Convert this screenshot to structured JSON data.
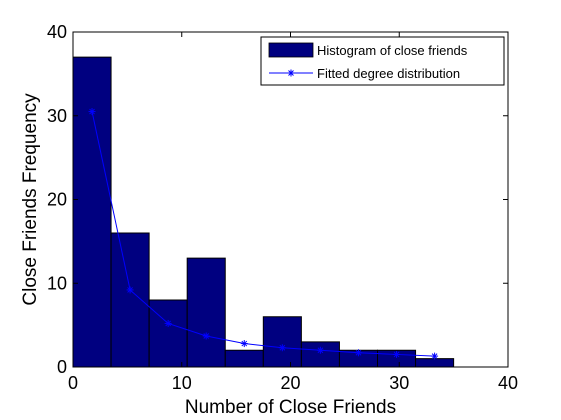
{
  "chart_data": {
    "type": "bar",
    "xlabel": "Number of Close Friends",
    "ylabel": "Close Friends Frequency",
    "xlim": [
      0,
      40
    ],
    "ylim": [
      0,
      40
    ],
    "xticks": [
      0,
      10,
      20,
      30,
      40
    ],
    "yticks": [
      0,
      10,
      20,
      30,
      40
    ],
    "grid": false,
    "legend_position": "top-right",
    "bar_color": "#000080",
    "line_color": "#0000ff",
    "series": [
      {
        "name": "Histogram of close friends",
        "type": "bar",
        "bins": [
          {
            "x0": 0,
            "x1": 3.5,
            "value": 37
          },
          {
            "x0": 3.5,
            "x1": 7,
            "value": 16
          },
          {
            "x0": 7,
            "x1": 10.5,
            "value": 8
          },
          {
            "x0": 10.5,
            "x1": 14,
            "value": 13
          },
          {
            "x0": 14,
            "x1": 17.5,
            "value": 2
          },
          {
            "x0": 17.5,
            "x1": 21,
            "value": 6
          },
          {
            "x0": 21,
            "x1": 24.5,
            "value": 3
          },
          {
            "x0": 24.5,
            "x1": 28,
            "value": 2
          },
          {
            "x0": 28,
            "x1": 31.5,
            "value": 2
          },
          {
            "x0": 31.5,
            "x1": 35,
            "value": 1
          }
        ]
      },
      {
        "name": "Fitted degree distribution",
        "type": "line",
        "marker": "asterisk",
        "x": [
          1.75,
          5.25,
          8.75,
          12.25,
          15.75,
          19.25,
          22.75,
          26.25,
          29.75,
          33.25
        ],
        "y": [
          30.5,
          9.2,
          5.2,
          3.7,
          2.8,
          2.3,
          2.0,
          1.7,
          1.5,
          1.3
        ]
      }
    ]
  }
}
